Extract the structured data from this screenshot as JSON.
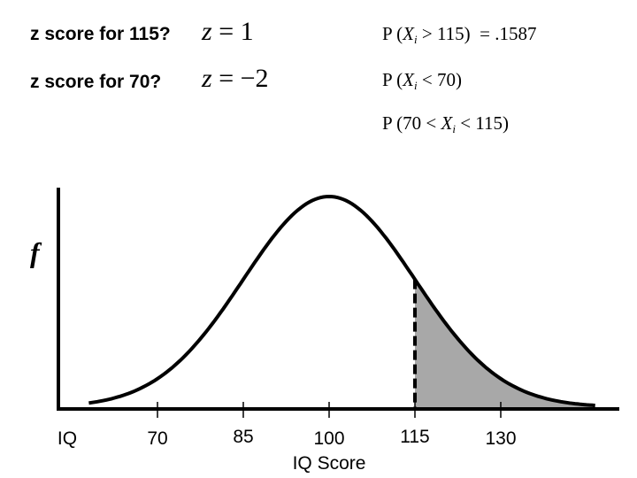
{
  "questions": [
    {
      "label": "z score for 115?",
      "z_symbol": "z",
      "equals": "=",
      "z_value": "1"
    },
    {
      "label": "z score for 70?",
      "z_symbol": "z",
      "equals": "=",
      "z_value": "−2"
    }
  ],
  "probabilities": [
    {
      "prefix": "P (",
      "var": "X",
      "sub": "i",
      "rest": " > 115)",
      "result": "  = .1587"
    },
    {
      "prefix": "P (",
      "var": "X",
      "sub": "i",
      "rest": " < 70)",
      "result": ""
    },
    {
      "prefix": "P (70 < ",
      "var": "X",
      "sub": "i",
      "rest": " < 115)",
      "result": ""
    }
  ],
  "axis": {
    "y_label": "f",
    "x_label": "IQ Score",
    "x_left_label": "IQ",
    "ticks": [
      "70",
      "85",
      "100",
      "115",
      "130"
    ]
  },
  "chart_data": {
    "type": "area",
    "distribution": "normal",
    "mean": 100,
    "sd": 15,
    "shaded_region": {
      "from": 115,
      "to": "upper tail"
    },
    "marker_line_at": 115,
    "marker_style": "dashed",
    "x_ticks": [
      70,
      85,
      100,
      115,
      130
    ],
    "shaded_probability": 0.1587,
    "colors": {
      "curve": "#000000",
      "shade": "#a8a8a8"
    }
  }
}
